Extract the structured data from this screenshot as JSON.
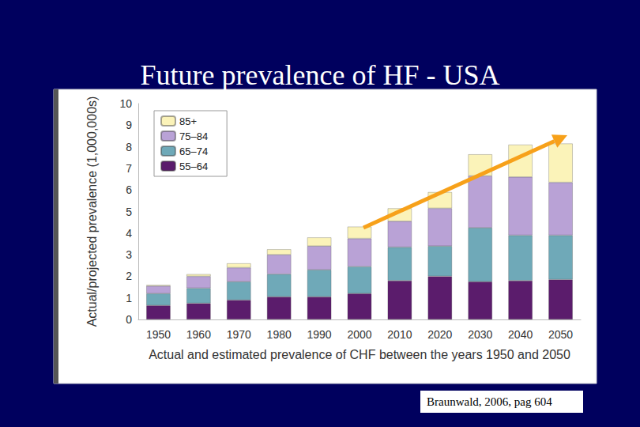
{
  "chart_data": {
    "type": "bar",
    "title": "Future prevalence of HF - USA",
    "caption": "Braunwald, 2006, pag 604",
    "x_label": "Actual and estimated prevalence of CHF between the years 1950 and 2050",
    "y_label": "Actual/projected prevalence (1,000,000s)",
    "categories": [
      "1950",
      "1960",
      "1970",
      "1980",
      "1990",
      "2000",
      "2010",
      "2020",
      "2030",
      "2040",
      "2050"
    ],
    "series": [
      {
        "name": "55–64",
        "color": "#5b1c6c",
        "values": [
          0.65,
          0.75,
          0.9,
          1.05,
          1.05,
          1.2,
          1.8,
          2.0,
          1.75,
          1.8,
          1.85
        ]
      },
      {
        "name": "65–74",
        "color": "#6fa9b8",
        "values": [
          0.55,
          0.7,
          0.85,
          1.05,
          1.25,
          1.25,
          1.55,
          1.4,
          2.5,
          2.1,
          2.05
        ]
      },
      {
        "name": "75–84",
        "color": "#b9a2d6",
        "values": [
          0.35,
          0.55,
          0.65,
          0.9,
          1.1,
          1.3,
          1.2,
          1.75,
          2.4,
          2.7,
          2.45
        ]
      },
      {
        "name": "85+",
        "color": "#fbf3b9",
        "values": [
          0.05,
          0.1,
          0.2,
          0.25,
          0.4,
          0.55,
          0.6,
          0.75,
          1.0,
          1.5,
          1.8
        ]
      }
    ],
    "stacked": true,
    "ylim": [
      0,
      10
    ],
    "yticks": [
      0,
      1,
      2,
      3,
      4,
      5,
      6,
      7,
      8,
      9,
      10
    ],
    "grid": false,
    "legend": "upper left"
  }
}
